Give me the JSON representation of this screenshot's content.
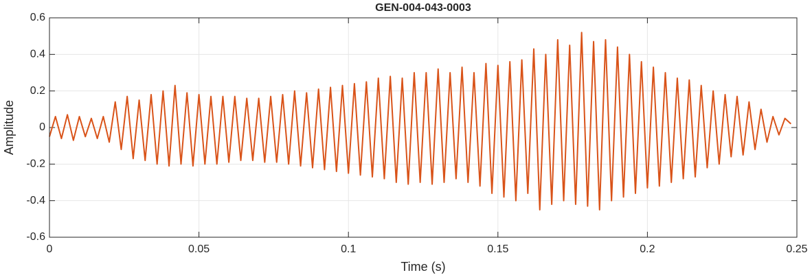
{
  "chart_data": {
    "type": "line",
    "title": "GEN-004-043-0003",
    "xlabel": "Time (s)",
    "ylabel": "Amplitude",
    "xlim": [
      0,
      0.25
    ],
    "ylim": [
      -0.6,
      0.6
    ],
    "xticks": [
      0,
      0.05,
      0.1,
      0.15,
      0.2,
      0.25
    ],
    "yticks": [
      -0.6,
      -0.4,
      -0.2,
      0,
      0.2,
      0.4,
      0.6
    ],
    "grid": true,
    "x": [
      0,
      0.002,
      0.004,
      0.006,
      0.008,
      0.01,
      0.012,
      0.014,
      0.016,
      0.018,
      0.02,
      0.022,
      0.024,
      0.026,
      0.028,
      0.03,
      0.032,
      0.034,
      0.036,
      0.038,
      0.04,
      0.042,
      0.044,
      0.046,
      0.048,
      0.05,
      0.052,
      0.054,
      0.056,
      0.058,
      0.06,
      0.062,
      0.064,
      0.066,
      0.068,
      0.07,
      0.072,
      0.074,
      0.076,
      0.078,
      0.08,
      0.082,
      0.084,
      0.086,
      0.088,
      0.09,
      0.092,
      0.094,
      0.096,
      0.098,
      0.1,
      0.102,
      0.104,
      0.106,
      0.108,
      0.11,
      0.112,
      0.114,
      0.116,
      0.118,
      0.12,
      0.122,
      0.124,
      0.126,
      0.128,
      0.13,
      0.132,
      0.134,
      0.136,
      0.138,
      0.14,
      0.142,
      0.144,
      0.146,
      0.148,
      0.15,
      0.152,
      0.154,
      0.156,
      0.158,
      0.16,
      0.162,
      0.164,
      0.166,
      0.168,
      0.17,
      0.172,
      0.174,
      0.176,
      0.178,
      0.18,
      0.182,
      0.184,
      0.186,
      0.188,
      0.19,
      0.192,
      0.194,
      0.196,
      0.198,
      0.2,
      0.202,
      0.204,
      0.206,
      0.208,
      0.21,
      0.212,
      0.214,
      0.216,
      0.218,
      0.22,
      0.222,
      0.224,
      0.226,
      0.228,
      0.23,
      0.232,
      0.234,
      0.236,
      0.238,
      0.24,
      0.242,
      0.244,
      0.246,
      0.248
    ],
    "series": [
      {
        "name": "Amplitude",
        "color": "#D95319",
        "values": [
          -0.05,
          0.06,
          -0.06,
          0.07,
          -0.07,
          0.06,
          -0.05,
          0.05,
          -0.06,
          0.06,
          -0.08,
          0.14,
          -0.12,
          0.17,
          -0.17,
          0.15,
          -0.18,
          0.18,
          -0.2,
          0.2,
          -0.21,
          0.23,
          -0.2,
          0.19,
          -0.21,
          0.18,
          -0.2,
          0.17,
          -0.2,
          0.17,
          -0.19,
          0.17,
          -0.18,
          0.16,
          -0.18,
          0.16,
          -0.19,
          0.17,
          -0.19,
          0.18,
          -0.2,
          0.2,
          -0.21,
          0.19,
          -0.22,
          0.21,
          -0.23,
          0.22,
          -0.24,
          0.23,
          -0.25,
          0.24,
          -0.26,
          0.25,
          -0.27,
          0.27,
          -0.28,
          0.28,
          -0.3,
          0.27,
          -0.31,
          0.3,
          -0.3,
          0.3,
          -0.31,
          0.32,
          -0.3,
          0.3,
          -0.28,
          0.33,
          -0.3,
          0.3,
          -0.32,
          0.35,
          -0.36,
          0.34,
          -0.38,
          0.36,
          -0.4,
          0.37,
          -0.36,
          0.43,
          -0.45,
          0.4,
          -0.42,
          0.48,
          -0.4,
          0.45,
          -0.42,
          0.52,
          -0.43,
          0.47,
          -0.45,
          0.48,
          -0.4,
          0.44,
          -0.38,
          0.4,
          -0.36,
          0.36,
          -0.33,
          0.33,
          -0.32,
          0.3,
          -0.3,
          0.27,
          -0.28,
          0.26,
          -0.27,
          0.23,
          -0.22,
          0.2,
          -0.2,
          0.18,
          -0.16,
          0.17,
          -0.15,
          0.14,
          -0.12,
          0.1,
          -0.08,
          0.06,
          -0.04,
          0.05,
          0.02
        ]
      }
    ]
  }
}
